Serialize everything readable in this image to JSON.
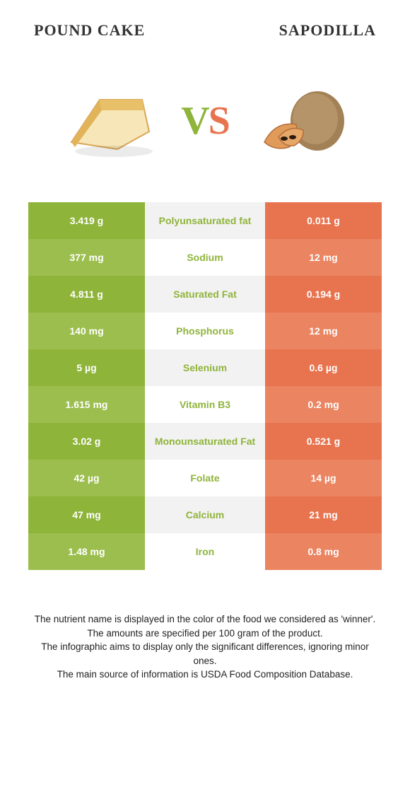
{
  "colors": {
    "left_a": "#8fb43a",
    "left_b": "#9cbe4e",
    "mid_a": "#f2f2f2",
    "mid_b": "#ffffff",
    "right_a": "#e8744f",
    "right_b": "#eb8461",
    "mid_text_green": "#8fb43a",
    "mid_text_orange": "#e8744f"
  },
  "header": {
    "left": "POUND CAKE",
    "right": "SAPODILLA"
  },
  "vs": {
    "v": "V",
    "s": "S"
  },
  "rows": [
    {
      "left": "3.419 g",
      "mid": "Polyunsaturated fat",
      "right": "0.011 g",
      "winner": "left"
    },
    {
      "left": "377 mg",
      "mid": "Sodium",
      "right": "12 mg",
      "winner": "left"
    },
    {
      "left": "4.811 g",
      "mid": "Saturated Fat",
      "right": "0.194 g",
      "winner": "left"
    },
    {
      "left": "140 mg",
      "mid": "Phosphorus",
      "right": "12 mg",
      "winner": "left"
    },
    {
      "left": "5 µg",
      "mid": "Selenium",
      "right": "0.6 µg",
      "winner": "left"
    },
    {
      "left": "1.615 mg",
      "mid": "Vitamin B3",
      "right": "0.2 mg",
      "winner": "left"
    },
    {
      "left": "3.02 g",
      "mid": "Monounsaturated Fat",
      "right": "0.521 g",
      "winner": "left"
    },
    {
      "left": "42 µg",
      "mid": "Folate",
      "right": "14 µg",
      "winner": "left"
    },
    {
      "left": "47 mg",
      "mid": "Calcium",
      "right": "21 mg",
      "winner": "left"
    },
    {
      "left": "1.48 mg",
      "mid": "Iron",
      "right": "0.8 mg",
      "winner": "left"
    }
  ],
  "footer": [
    "The nutrient name is displayed in the color of the food we considered as 'winner'.",
    "The amounts are specified per 100 gram of the product.",
    "The infographic aims to display only the significant differences, ignoring minor ones.",
    "The main source of information is USDA Food Composition Database."
  ]
}
